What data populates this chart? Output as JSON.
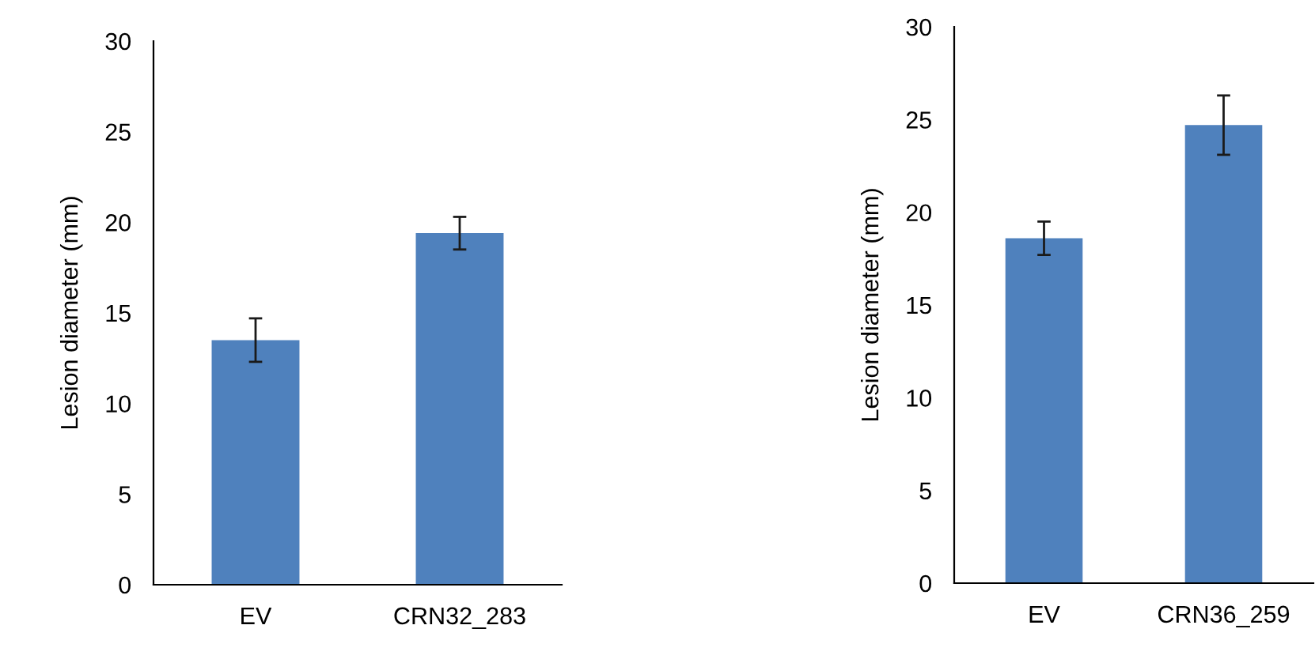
{
  "chart_data": [
    {
      "type": "bar",
      "categories": [
        "EV",
        "CRN32_283"
      ],
      "values": [
        13.5,
        19.4
      ],
      "errors": [
        1.2,
        0.9
      ],
      "color": "#4f81bd",
      "ylabel": "Lesion diameter (mm)",
      "ylim": [
        0,
        30
      ],
      "yticks": [
        0,
        5,
        10,
        15,
        20,
        25,
        30
      ],
      "grid": false
    },
    {
      "type": "bar",
      "categories": [
        "EV",
        "CRN36_259"
      ],
      "values": [
        18.6,
        24.7
      ],
      "errors": [
        0.9,
        1.6
      ],
      "color": "#4f81bd",
      "ylabel": "Lesion diameter (mm)",
      "ylim": [
        0,
        30
      ],
      "yticks": [
        0,
        5,
        10,
        15,
        20,
        25,
        30
      ],
      "grid": false
    }
  ]
}
